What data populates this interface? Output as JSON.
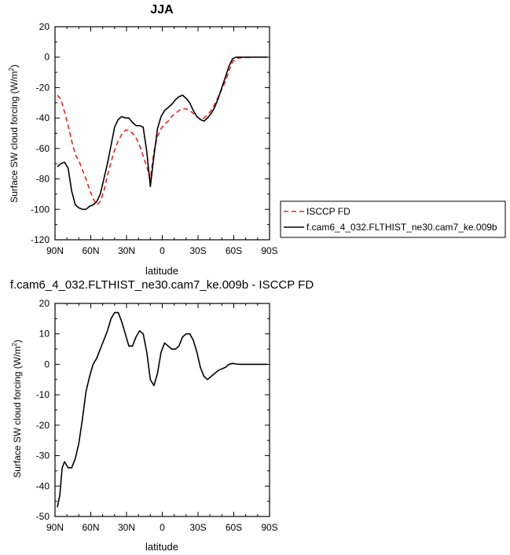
{
  "chart_data": [
    {
      "type": "line",
      "title": "JJA",
      "xlabel": "latitude",
      "ylabel": "Surface SW cloud forcing (W/m",
      "ylabel_sup": "2",
      "ylabel_close": ")",
      "xlim": [
        90,
        -90
      ],
      "ylim": [
        -120,
        20
      ],
      "xticks": [
        {
          "v": 90,
          "label": "90N"
        },
        {
          "v": 60,
          "label": "60N"
        },
        {
          "v": 30,
          "label": "30N"
        },
        {
          "v": 0,
          "label": "0"
        },
        {
          "v": -30,
          "label": "30S"
        },
        {
          "v": -60,
          "label": "60S"
        },
        {
          "v": -90,
          "label": "90S"
        }
      ],
      "yticks": [
        20,
        0,
        -20,
        -40,
        -60,
        -80,
        -100,
        -120
      ],
      "legend_position": "right",
      "series": [
        {
          "name": "ISCCP FD",
          "color": "#e8231f",
          "dash": "dashed",
          "x": [
            88,
            85,
            82,
            79,
            76,
            73,
            70,
            67,
            64,
            61,
            58,
            55,
            52,
            49,
            46,
            43,
            40,
            37,
            34,
            31,
            28,
            25,
            22,
            19,
            16,
            13,
            10,
            7,
            4,
            1,
            -2,
            -5,
            -8,
            -11,
            -14,
            -17,
            -20,
            -23,
            -26,
            -29,
            -32,
            -35,
            -38,
            -41,
            -44,
            -47,
            -50,
            -53,
            -56,
            -59,
            -62,
            -65,
            -68,
            -71,
            -74,
            -77,
            -80,
            -83,
            -86,
            -88
          ],
          "values": [
            -25,
            -28,
            -36,
            -45,
            -55,
            -64,
            -68,
            -74,
            -80,
            -87,
            -93,
            -97,
            -95,
            -88,
            -78,
            -69,
            -61,
            -55,
            -51,
            -48,
            -48,
            -50,
            -53,
            -58,
            -65,
            -72,
            -80,
            -62,
            -52,
            -47,
            -44,
            -42,
            -39,
            -37,
            -35,
            -34,
            -34,
            -35,
            -37,
            -39,
            -41,
            -40,
            -38,
            -35,
            -31,
            -26,
            -21,
            -16,
            -9,
            -3,
            -1,
            -0.5,
            -0.3,
            -0.2,
            -0.1,
            0,
            0,
            0,
            0,
            0
          ]
        },
        {
          "name": "f.cam6_4_032.FLTHIST_ne30.cam7_ke.009b",
          "color": "#000000",
          "dash": "solid",
          "x": [
            88,
            85,
            82,
            79,
            76,
            73,
            70,
            67,
            64,
            61,
            58,
            55,
            52,
            49,
            46,
            43,
            40,
            37,
            34,
            31,
            28,
            25,
            22,
            19,
            16,
            13,
            10,
            7,
            4,
            1,
            -2,
            -5,
            -8,
            -11,
            -14,
            -17,
            -20,
            -23,
            -26,
            -29,
            -32,
            -35,
            -38,
            -41,
            -44,
            -47,
            -50,
            -53,
            -56,
            -59,
            -62,
            -65,
            -68,
            -71,
            -74,
            -77,
            -80,
            -83,
            -86,
            -88
          ],
          "values": [
            -72,
            -70,
            -69,
            -73,
            -88,
            -97,
            -99,
            -100,
            -100,
            -98,
            -97,
            -95,
            -90,
            -80,
            -70,
            -58,
            -46,
            -41,
            -39,
            -40,
            -40,
            -43,
            -45,
            -45,
            -46,
            -62,
            -85,
            -65,
            -47,
            -39,
            -35,
            -33,
            -31,
            -28,
            -26,
            -25,
            -27,
            -30,
            -35,
            -39,
            -41,
            -42,
            -40,
            -37,
            -33,
            -27,
            -20,
            -13,
            -6,
            -1,
            0,
            0,
            0,
            0,
            0,
            0,
            0,
            0,
            0,
            0
          ]
        }
      ]
    },
    {
      "type": "line",
      "title": "f.cam6_4_032.FLTHIST_ne30.cam7_ke.009b - ISCCP FD",
      "xlabel": "latitude",
      "ylabel": "Surface SW cloud forcing (W/m",
      "ylabel_sup": "2",
      "ylabel_close": ")",
      "xlim": [
        90,
        -90
      ],
      "ylim": [
        -50,
        20
      ],
      "xticks": [
        {
          "v": 90,
          "label": "90N"
        },
        {
          "v": 60,
          "label": "60N"
        },
        {
          "v": 30,
          "label": "30N"
        },
        {
          "v": 0,
          "label": "0"
        },
        {
          "v": -30,
          "label": "30S"
        },
        {
          "v": -60,
          "label": "60S"
        },
        {
          "v": -90,
          "label": "90S"
        }
      ],
      "yticks": [
        20,
        10,
        0,
        -10,
        -20,
        -30,
        -40,
        -50
      ],
      "series": [
        {
          "color": "#000000",
          "dash": "solid",
          "x": [
            88,
            86,
            84,
            82,
            79,
            76,
            73,
            70,
            67,
            64,
            61,
            58,
            55,
            52,
            49,
            46,
            43,
            40,
            37,
            34,
            31,
            28,
            25,
            22,
            19,
            16,
            13,
            10,
            7,
            4,
            1,
            -2,
            -5,
            -8,
            -11,
            -14,
            -17,
            -20,
            -23,
            -26,
            -29,
            -32,
            -35,
            -38,
            -41,
            -44,
            -47,
            -50,
            -53,
            -56,
            -59,
            -62,
            -65,
            -68,
            -71,
            -74,
            -77,
            -80,
            -83,
            -86,
            -88
          ],
          "values": [
            -47,
            -43,
            -34,
            -32,
            -34,
            -34,
            -31,
            -26,
            -18,
            -9,
            -4,
            0,
            2,
            5,
            8,
            11,
            15,
            17,
            17,
            14,
            10,
            6,
            6,
            9,
            11,
            10,
            4,
            -5,
            -7,
            -3,
            4,
            7,
            6,
            5,
            5,
            6,
            9,
            10,
            10,
            8,
            4,
            -1,
            -4,
            -5,
            -4,
            -3,
            -2,
            -1.5,
            -1,
            0,
            0.3,
            0.1,
            0,
            0,
            0,
            0,
            0,
            0,
            0,
            0,
            0
          ]
        }
      ]
    }
  ]
}
